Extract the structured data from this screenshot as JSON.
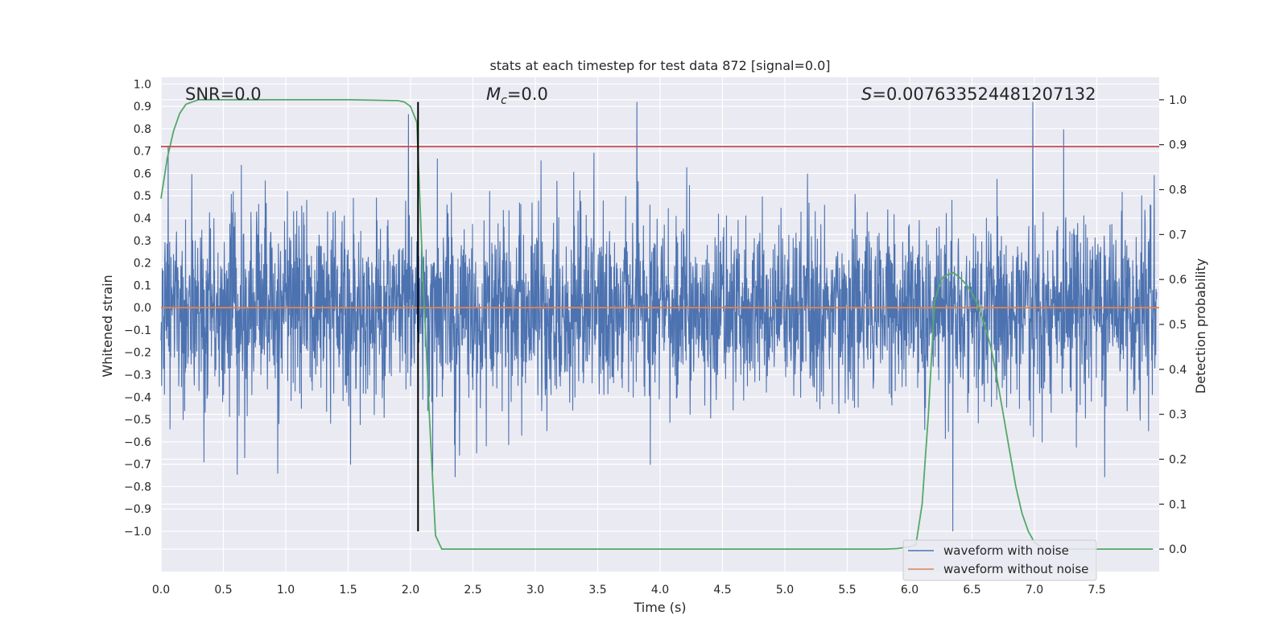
{
  "chart_data": {
    "type": "line",
    "title": "stats at each timestep for test data 872 [signal=0.0]",
    "xlabel": "Time (s)",
    "ylabel": "Whitened strain",
    "y2label": "Detection probability",
    "xlim": [
      0.0,
      8.0
    ],
    "ylim": [
      -1.18,
      1.03
    ],
    "y2lim": [
      -0.05,
      1.05
    ],
    "xticks": [
      0.0,
      0.5,
      1.0,
      1.5,
      2.0,
      2.5,
      3.0,
      3.5,
      4.0,
      4.5,
      5.0,
      5.5,
      6.0,
      6.5,
      7.0,
      7.5
    ],
    "xtick_labels": [
      "0.0",
      "0.5",
      "1.0",
      "1.5",
      "2.0",
      "2.5",
      "3.0",
      "3.5",
      "4.0",
      "4.5",
      "5.0",
      "5.5",
      "6.0",
      "6.5",
      "7.0",
      "7.5"
    ],
    "yticks": [
      1.0,
      0.9,
      0.8,
      0.7,
      0.6,
      0.5,
      0.4,
      0.3,
      0.2,
      0.1,
      0.0,
      -0.1,
      -0.2,
      -0.3,
      -0.4,
      -0.5,
      -0.6,
      -0.7,
      -0.8,
      -0.9,
      -1.0
    ],
    "ytick_labels": [
      "1.0",
      "0.9",
      "0.8",
      "0.7",
      "0.6",
      "0.5",
      "0.4",
      "0.3",
      "0.2",
      "0.1",
      "0.0",
      "−0.1",
      "−0.2",
      "−0.3",
      "−0.4",
      "−0.5",
      "−0.6",
      "−0.7",
      "−0.8",
      "−0.9",
      "−1.0"
    ],
    "y2ticks": [
      1.0,
      0.9,
      0.8,
      0.7,
      0.6,
      0.5,
      0.4,
      0.3,
      0.2,
      0.1,
      0.0
    ],
    "y2tick_labels": [
      "1.0",
      "0.9",
      "0.8",
      "0.7",
      "0.6",
      "0.5",
      "0.4",
      "0.3",
      "0.2",
      "0.1",
      "0.0"
    ],
    "grid": true,
    "legend_location": "lower right",
    "annotations": {
      "snr": "SNR=0.0",
      "mc": "M",
      "mc_sub": "c",
      "mc_value": "=0.0",
      "s_symbol": "S",
      "s_value": "=0.007633524481207132"
    },
    "series": [
      {
        "name": "waveform with noise",
        "axis": "left",
        "color": "#4c72b0",
        "style": "dense random noise, amplitude mostly within ±0.5 with spikes up to about 0.9 and down to -1.0"
      },
      {
        "name": "waveform without noise",
        "axis": "left",
        "color": "#dd8452",
        "x": [
          0.0,
          8.0
        ],
        "y": [
          0.0,
          0.0
        ]
      },
      {
        "axis": "right",
        "color": "#55a868",
        "x": [
          0.0,
          0.05,
          0.1,
          0.15,
          0.2,
          0.25,
          0.3,
          0.35,
          0.4,
          1.0,
          1.5,
          1.9,
          1.95,
          2.0,
          2.05,
          2.1,
          2.15,
          2.2,
          2.25,
          2.3,
          3.0,
          4.0,
          5.0,
          5.8,
          5.9,
          6.0,
          6.05,
          6.1,
          6.15,
          6.2,
          6.25,
          6.3,
          6.35,
          6.4,
          6.45,
          6.5,
          6.55,
          6.6,
          6.65,
          6.7,
          6.75,
          6.8,
          6.85,
          6.9,
          6.95,
          7.0,
          7.05,
          7.1,
          7.5,
          7.95
        ],
        "y": [
          0.78,
          0.87,
          0.93,
          0.97,
          0.99,
          0.995,
          1.0,
          1.0,
          1.0,
          1.0,
          1.0,
          0.998,
          0.995,
          0.985,
          0.95,
          0.6,
          0.3,
          0.03,
          0.0,
          0.0,
          0.0,
          0.0,
          0.0,
          0.0,
          0.001,
          0.005,
          0.01,
          0.1,
          0.3,
          0.55,
          0.6,
          0.61,
          0.615,
          0.605,
          0.59,
          0.57,
          0.54,
          0.5,
          0.45,
          0.38,
          0.3,
          0.22,
          0.14,
          0.08,
          0.04,
          0.015,
          0.005,
          0.0,
          0.0,
          0.0
        ]
      },
      {
        "axis": "left",
        "color": "#c44e52",
        "x": [
          0.0,
          8.0
        ],
        "y": [
          0.72,
          0.72
        ]
      },
      {
        "axis": "left",
        "color": "#000000",
        "x": [
          2.06,
          2.06
        ],
        "y": [
          -1.0,
          0.92
        ]
      }
    ]
  }
}
